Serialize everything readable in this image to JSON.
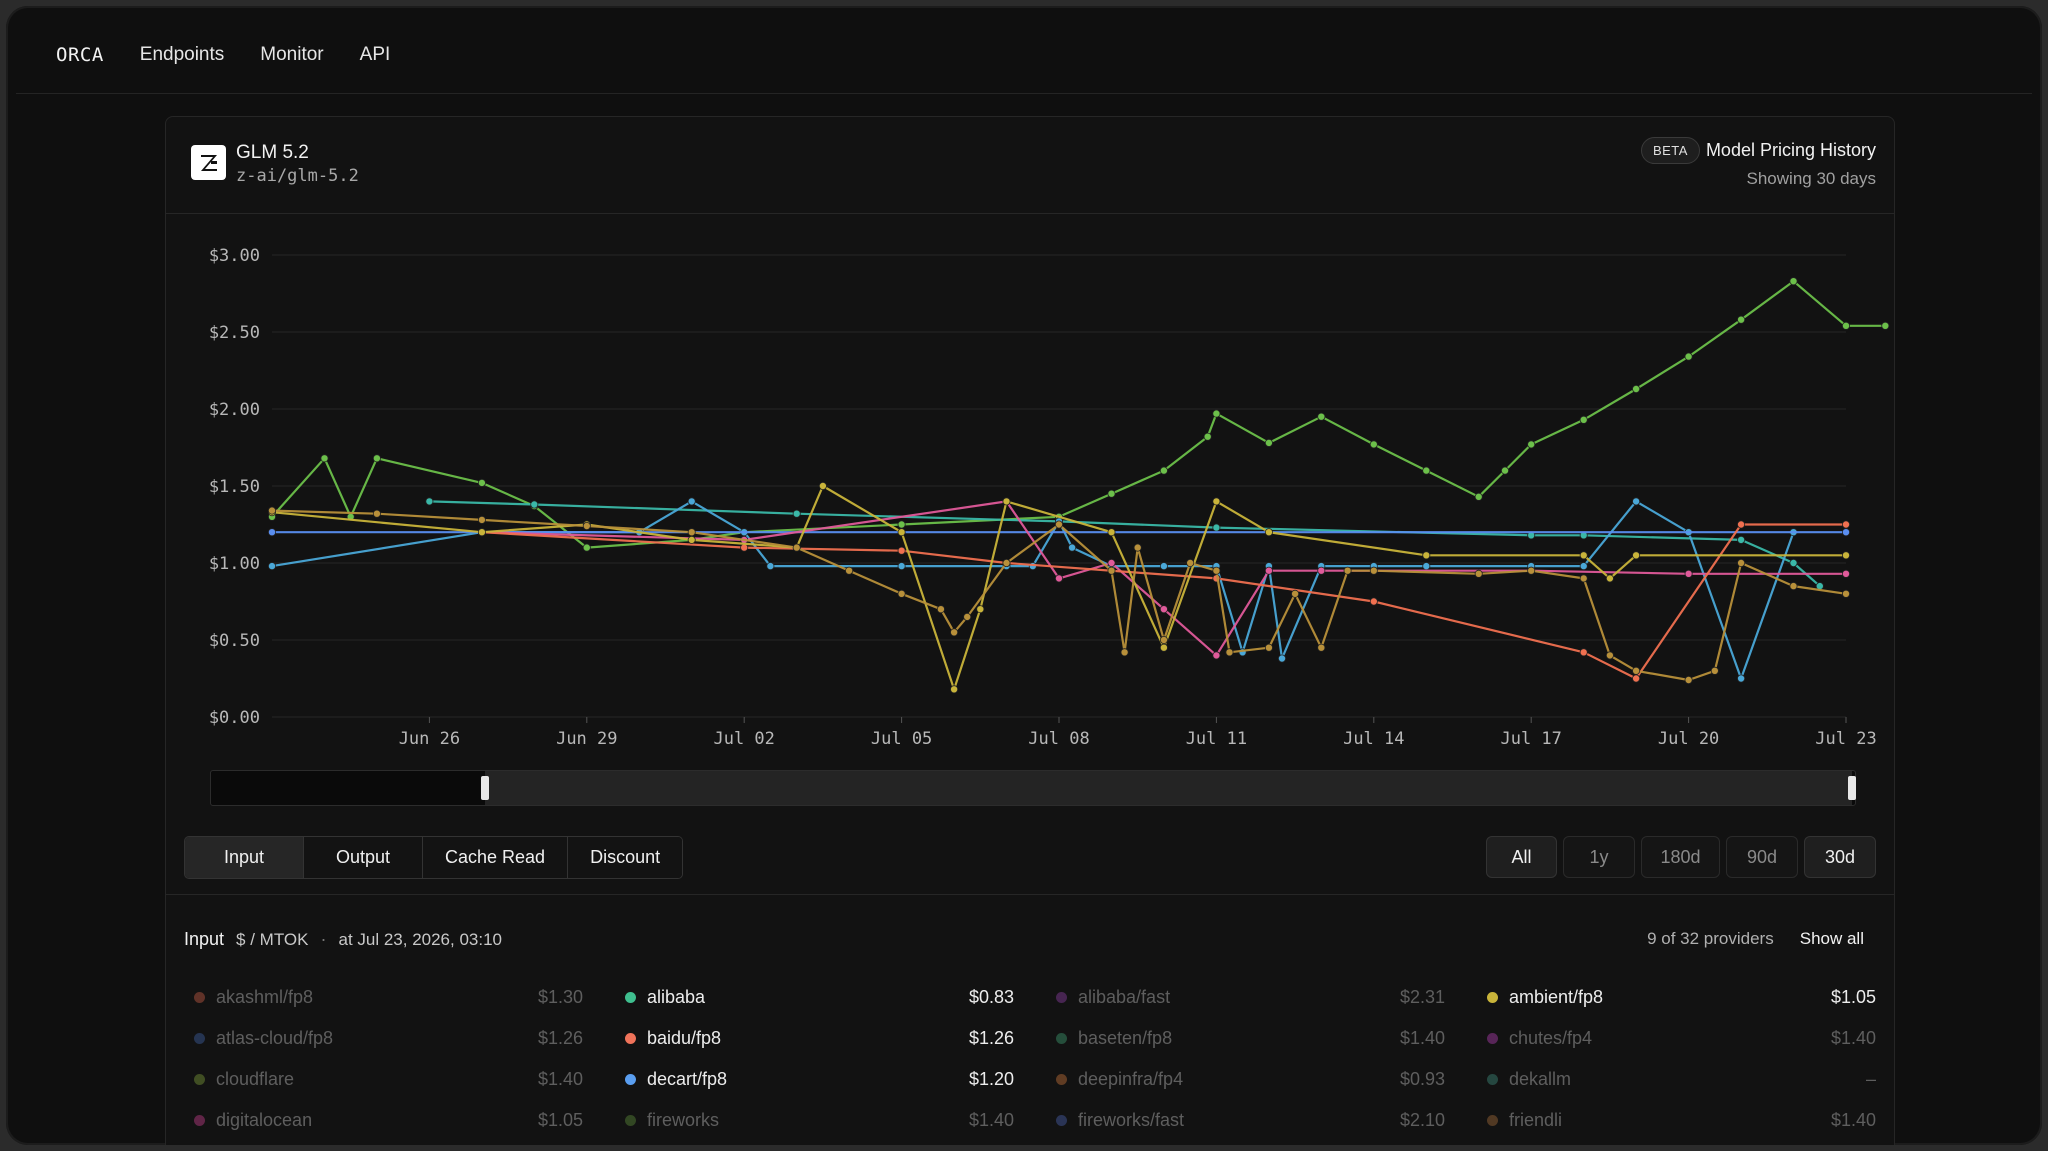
{
  "nav": {
    "brand": "ORCA",
    "links": [
      "Endpoints",
      "Monitor",
      "API"
    ]
  },
  "model": {
    "name": "GLM 5.2",
    "id": "z-ai/glm-5.2"
  },
  "header": {
    "badge": "BETA",
    "title": "Model Pricing History",
    "subtitle": "Showing 30 days"
  },
  "tabs": [
    "Input",
    "Output",
    "Cache Read",
    "Discount"
  ],
  "active_tab": "Input",
  "ranges": [
    "All",
    "1y",
    "180d",
    "90d",
    "30d"
  ],
  "active_range": "30d",
  "legend": {
    "title": "Input",
    "unit": "$ / MTOK",
    "separator": "·",
    "at": "at Jul 23, 2026, 03:10",
    "count": "9 of 32 providers",
    "show_all": "Show all"
  },
  "providers": [
    {
      "name": "akashml/fp8",
      "price": "$1.30",
      "color": "#c05a45",
      "active": false
    },
    {
      "name": "alibaba",
      "price": "$0.83",
      "color": "#3fbf8f",
      "active": true
    },
    {
      "name": "alibaba/fast",
      "price": "$2.31",
      "color": "#8a3fa0",
      "active": false
    },
    {
      "name": "ambient/fp8",
      "price": "$1.05",
      "color": "#c9b43a",
      "active": true
    },
    {
      "name": "atlas-cloud/fp8",
      "price": "$1.26",
      "color": "#3f5fa0",
      "active": false
    },
    {
      "name": "baidu/fp8",
      "price": "$1.26",
      "color": "#f0735a",
      "active": true
    },
    {
      "name": "baseten/fp8",
      "price": "$1.40",
      "color": "#3f9a6f",
      "active": false
    },
    {
      "name": "chutes/fp4",
      "price": "$1.40",
      "color": "#b03fb0",
      "active": false
    },
    {
      "name": "cloudflare",
      "price": "$1.40",
      "color": "#7a9a3a",
      "active": false
    },
    {
      "name": "decart/fp8",
      "price": "$1.20",
      "color": "#5a9ef0",
      "active": true
    },
    {
      "name": "deepinfra/fp4",
      "price": "$0.93",
      "color": "#c0703a",
      "active": false
    },
    {
      "name": "dekallm",
      "price": "–",
      "color": "#3f8a7a",
      "active": false
    },
    {
      "name": "digitalocean",
      "price": "$1.05",
      "color": "#c03f8a",
      "active": false
    },
    {
      "name": "fireworks",
      "price": "$1.40",
      "color": "#5a8a3a",
      "active": false
    },
    {
      "name": "fireworks/fast",
      "price": "$2.10",
      "color": "#4a5fa8",
      "active": false
    },
    {
      "name": "friendli",
      "price": "$1.40",
      "color": "#a06a3a",
      "active": false
    }
  ],
  "chart_data": {
    "type": "line",
    "ylim": [
      0,
      3.0
    ],
    "y_ticks": [
      "$0.00",
      "$0.50",
      "$1.00",
      "$1.50",
      "$2.00",
      "$2.50",
      "$3.00"
    ],
    "y_tick_values": [
      0,
      0.5,
      1.0,
      1.5,
      2.0,
      2.5,
      3.0
    ],
    "x_range": [
      "2026-06-23",
      "2026-07-23"
    ],
    "x_ticks": [
      {
        "label": "Jun 26",
        "date": "2026-06-26"
      },
      {
        "label": "Jun 29",
        "date": "2026-06-29"
      },
      {
        "label": "Jul 02",
        "date": "2026-07-02"
      },
      {
        "label": "Jul 05",
        "date": "2026-07-05"
      },
      {
        "label": "Jul 08",
        "date": "2026-07-08"
      },
      {
        "label": "Jul 11",
        "date": "2026-07-11"
      },
      {
        "label": "Jul 14",
        "date": "2026-07-14"
      },
      {
        "label": "Jul 17",
        "date": "2026-07-17"
      },
      {
        "label": "Jul 20",
        "date": "2026-07-20"
      },
      {
        "label": "Jul 23",
        "date": "2026-07-23"
      }
    ],
    "series": [
      {
        "color": "#6cc04a",
        "points": [
          [
            "2026-06-23",
            1.3
          ],
          [
            "2026-06-24",
            1.68
          ],
          [
            "2026-06-24 12:00",
            1.3
          ],
          [
            "2026-06-25",
            1.68
          ],
          [
            "2026-06-27",
            1.52
          ],
          [
            "2026-06-28",
            1.37
          ],
          [
            "2026-06-29",
            1.1
          ],
          [
            "2026-07-01",
            1.15
          ],
          [
            "2026-07-02",
            1.2
          ],
          [
            "2026-07-05",
            1.25
          ],
          [
            "2026-07-08",
            1.3
          ],
          [
            "2026-07-09",
            1.45
          ],
          [
            "2026-07-10",
            1.6
          ],
          [
            "2026-07-10 20:00",
            1.82
          ],
          [
            "2026-07-11",
            1.97
          ],
          [
            "2026-07-12",
            1.78
          ],
          [
            "2026-07-13",
            1.95
          ],
          [
            "2026-07-14",
            1.77
          ],
          [
            "2026-07-15",
            1.6
          ],
          [
            "2026-07-16",
            1.43
          ],
          [
            "2026-07-16 12:00",
            1.6
          ],
          [
            "2026-07-17",
            1.77
          ],
          [
            "2026-07-18",
            1.93
          ],
          [
            "2026-07-19",
            2.13
          ],
          [
            "2026-07-20",
            2.34
          ],
          [
            "2026-07-21",
            2.58
          ],
          [
            "2026-07-22",
            2.83
          ],
          [
            "2026-07-23",
            2.54
          ],
          [
            "2026-07-23 18:00",
            2.54
          ]
        ]
      },
      {
        "color": "#3ab8a8",
        "points": [
          [
            "2026-06-26",
            1.4
          ],
          [
            "2026-06-28",
            1.38
          ],
          [
            "2026-07-03",
            1.32
          ],
          [
            "2026-07-08",
            1.27
          ],
          [
            "2026-07-11",
            1.23
          ],
          [
            "2026-07-17",
            1.18
          ],
          [
            "2026-07-18",
            1.18
          ],
          [
            "2026-07-21",
            1.15
          ],
          [
            "2026-07-22",
            1.0
          ],
          [
            "2026-07-22 12:00",
            0.85
          ]
        ]
      },
      {
        "color": "#4aa8d8",
        "points": [
          [
            "2026-06-23",
            0.98
          ],
          [
            "2026-06-27",
            1.2
          ],
          [
            "2026-06-30",
            1.2
          ],
          [
            "2026-07-01",
            1.4
          ],
          [
            "2026-07-02",
            1.2
          ],
          [
            "2026-07-02 12:00",
            0.98
          ],
          [
            "2026-07-05",
            0.98
          ],
          [
            "2026-07-07",
            0.98
          ],
          [
            "2026-07-07 12:00",
            0.98
          ],
          [
            "2026-07-08",
            1.27
          ],
          [
            "2026-07-08 06:00",
            1.1
          ],
          [
            "2026-07-09",
            0.98
          ],
          [
            "2026-07-10",
            0.98
          ],
          [
            "2026-07-11",
            0.98
          ],
          [
            "2026-07-11 12:00",
            0.42
          ],
          [
            "2026-07-12",
            0.98
          ],
          [
            "2026-07-12 06:00",
            0.38
          ],
          [
            "2026-07-13",
            0.98
          ],
          [
            "2026-07-14",
            0.98
          ],
          [
            "2026-07-15",
            0.98
          ],
          [
            "2026-07-17",
            0.98
          ],
          [
            "2026-07-18",
            0.98
          ],
          [
            "2026-07-19",
            1.4
          ],
          [
            "2026-07-20",
            1.2
          ],
          [
            "2026-07-21",
            0.25
          ],
          [
            "2026-07-22",
            1.2
          ]
        ]
      },
      {
        "color": "#5a8ef0",
        "points": [
          [
            "2026-06-23",
            1.2
          ],
          [
            "2026-07-23",
            1.2
          ]
        ]
      },
      {
        "color": "#e05a9a",
        "points": [
          [
            "2026-06-27",
            1.2
          ],
          [
            "2026-07-02",
            1.15
          ],
          [
            "2026-07-07",
            1.4
          ],
          [
            "2026-07-08",
            0.9
          ],
          [
            "2026-07-09",
            1.0
          ],
          [
            "2026-07-10",
            0.7
          ],
          [
            "2026-07-11",
            0.4
          ],
          [
            "2026-07-12",
            0.95
          ],
          [
            "2026-07-13",
            0.95
          ],
          [
            "2026-07-14",
            0.95
          ],
          [
            "2026-07-17",
            0.95
          ],
          [
            "2026-07-20",
            0.93
          ],
          [
            "2026-07-23",
            0.93
          ]
        ]
      },
      {
        "color": "#f07050",
        "points": [
          [
            "2026-06-27",
            1.2
          ],
          [
            "2026-07-02",
            1.1
          ],
          [
            "2026-07-05",
            1.08
          ],
          [
            "2026-07-07",
            1.0
          ],
          [
            "2026-07-11",
            0.9
          ],
          [
            "2026-07-14",
            0.75
          ],
          [
            "2026-07-18",
            0.42
          ],
          [
            "2026-07-19",
            0.25
          ],
          [
            "2026-07-21",
            1.25
          ],
          [
            "2026-07-23",
            1.25
          ]
        ]
      },
      {
        "color": "#c9b43a",
        "points": [
          [
            "2026-06-23",
            1.33
          ],
          [
            "2026-06-27",
            1.2
          ],
          [
            "2026-06-29",
            1.25
          ],
          [
            "2026-07-01",
            1.15
          ],
          [
            "2026-07-03",
            1.1
          ],
          [
            "2026-07-03 12:00",
            1.5
          ],
          [
            "2026-07-05",
            1.2
          ],
          [
            "2026-07-06",
            0.18
          ],
          [
            "2026-07-06 12:00",
            0.7
          ],
          [
            "2026-07-07",
            1.4
          ],
          [
            "2026-07-09",
            1.2
          ],
          [
            "2026-07-10",
            0.45
          ],
          [
            "2026-07-11",
            1.4
          ],
          [
            "2026-07-12",
            1.2
          ],
          [
            "2026-07-15",
            1.05
          ],
          [
            "2026-07-18",
            1.05
          ],
          [
            "2026-07-18 12:00",
            0.9
          ],
          [
            "2026-07-19",
            1.05
          ],
          [
            "2026-07-23",
            1.05
          ]
        ]
      },
      {
        "color": "#b8903a",
        "points": [
          [
            "2026-06-23",
            1.34
          ],
          [
            "2026-06-25",
            1.32
          ],
          [
            "2026-06-27",
            1.28
          ],
          [
            "2026-06-29",
            1.24
          ],
          [
            "2026-07-01",
            1.2
          ],
          [
            "2026-07-03",
            1.1
          ],
          [
            "2026-07-04",
            0.95
          ],
          [
            "2026-07-05",
            0.8
          ],
          [
            "2026-07-05 18:00",
            0.7
          ],
          [
            "2026-07-06",
            0.55
          ],
          [
            "2026-07-06 06:00",
            0.65
          ],
          [
            "2026-07-07",
            1.0
          ],
          [
            "2026-07-08",
            1.25
          ],
          [
            "2026-07-09",
            0.95
          ],
          [
            "2026-07-09 06:00",
            0.42
          ],
          [
            "2026-07-09 12:00",
            1.1
          ],
          [
            "2026-07-10",
            0.5
          ],
          [
            "2026-07-10 12:00",
            1.0
          ],
          [
            "2026-07-11",
            0.95
          ],
          [
            "2026-07-11 06:00",
            0.42
          ],
          [
            "2026-07-12",
            0.45
          ],
          [
            "2026-07-12 12:00",
            0.8
          ],
          [
            "2026-07-13",
            0.45
          ],
          [
            "2026-07-13 12:00",
            0.95
          ],
          [
            "2026-07-14",
            0.95
          ],
          [
            "2026-07-16",
            0.93
          ],
          [
            "2026-07-17",
            0.95
          ],
          [
            "2026-07-18",
            0.9
          ],
          [
            "2026-07-18 12:00",
            0.4
          ],
          [
            "2026-07-19",
            0.3
          ],
          [
            "2026-07-20",
            0.24
          ],
          [
            "2026-07-20 12:00",
            0.3
          ],
          [
            "2026-07-21",
            1.0
          ],
          [
            "2026-07-22",
            0.85
          ],
          [
            "2026-07-23",
            0.8
          ]
        ]
      }
    ]
  }
}
